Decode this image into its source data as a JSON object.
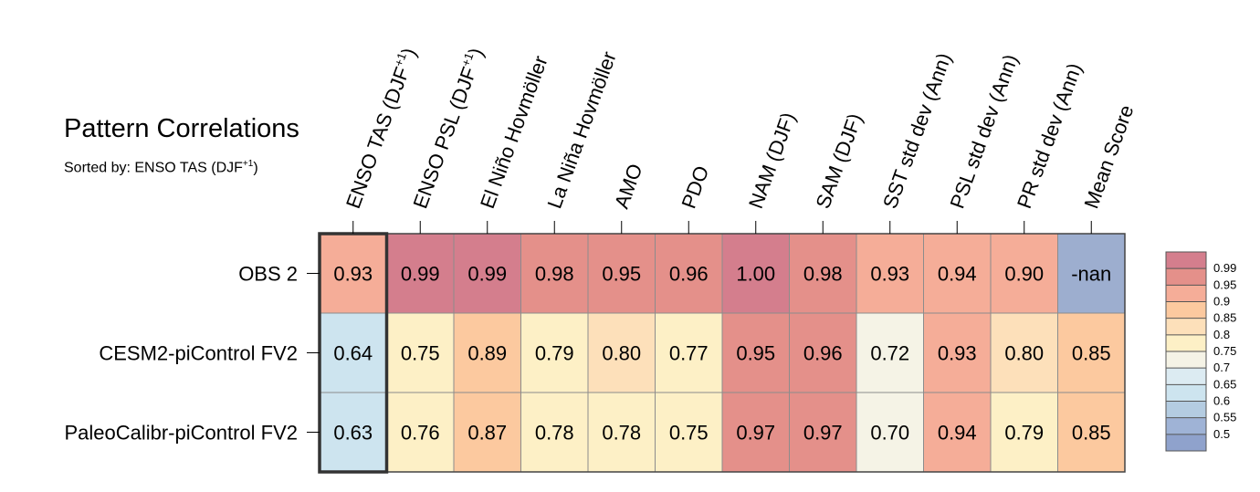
{
  "title": "Pattern Correlations",
  "subtitle": {
    "prefix": "Sorted by: ENSO TAS (DJF",
    "sup": "+1",
    "suffix": ")"
  },
  "chart_data": {
    "type": "heatmap",
    "columns": [
      {
        "label": "ENSO TAS (DJF",
        "sup": "+1",
        "close": ")"
      },
      {
        "label": "ENSO PSL (DJF",
        "sup": "+1",
        "close": ")"
      },
      {
        "label": "El Niño Hovmöller"
      },
      {
        "label": "La Niña Hovmöller"
      },
      {
        "label": "AMO"
      },
      {
        "label": "PDO"
      },
      {
        "label": "NAM (DJF)"
      },
      {
        "label": "SAM (DJF)"
      },
      {
        "label": "SST std dev (Ann)"
      },
      {
        "label": "PSL std dev (Ann)"
      },
      {
        "label": "PR std dev (Ann)"
      },
      {
        "label": "Mean Score"
      }
    ],
    "rows": [
      "OBS 2",
      "CESM2-piControl FV2",
      "PaleoCalibr-piControl FV2"
    ],
    "values": [
      [
        0.93,
        0.99,
        0.99,
        0.98,
        0.95,
        0.96,
        1.0,
        0.98,
        0.93,
        0.94,
        0.9,
        null
      ],
      [
        0.64,
        0.75,
        0.89,
        0.79,
        0.8,
        0.77,
        0.95,
        0.96,
        0.72,
        0.93,
        0.8,
        0.85
      ],
      [
        0.63,
        0.76,
        0.87,
        0.78,
        0.78,
        0.75,
        0.97,
        0.97,
        0.7,
        0.94,
        0.79,
        0.85
      ]
    ],
    "cell_text": [
      [
        "0.93",
        "0.99",
        "0.99",
        "0.98",
        "0.95",
        "0.96",
        "1.00",
        "0.98",
        "0.93",
        "0.94",
        "0.90",
        "-nan"
      ],
      [
        "0.64",
        "0.75",
        "0.89",
        "0.79",
        "0.80",
        "0.77",
        "0.95",
        "0.96",
        "0.72",
        "0.93",
        "0.80",
        "0.85"
      ],
      [
        "0.63",
        "0.76",
        "0.87",
        "0.78",
        "0.78",
        "0.75",
        "0.97",
        "0.97",
        "0.70",
        "0.94",
        "0.79",
        "0.85"
      ]
    ],
    "highlighted_column": 0,
    "nan_color": "#9daecf",
    "colorbar": {
      "labels": [
        "0.99",
        "0.95",
        "0.9",
        "0.85",
        "0.8",
        "0.75",
        "0.7",
        "0.65",
        "0.6",
        "0.55",
        "0.5"
      ],
      "bins": [
        {
          "lo": 0.99,
          "color": "#d47e8d"
        },
        {
          "lo": 0.95,
          "color": "#e4908a"
        },
        {
          "lo": 0.9,
          "color": "#f5ad98"
        },
        {
          "lo": 0.85,
          "color": "#fcc99f"
        },
        {
          "lo": 0.8,
          "color": "#fde0ba"
        },
        {
          "lo": 0.75,
          "color": "#fdf0c6"
        },
        {
          "lo": 0.7,
          "color": "#f5f3e6"
        },
        {
          "lo": 0.65,
          "color": "#dcebf2"
        },
        {
          "lo": 0.6,
          "color": "#cde4ef"
        },
        {
          "lo": 0.55,
          "color": "#b4cce1"
        },
        {
          "lo": 0.5,
          "color": "#9fb3d6"
        },
        {
          "lo": -1.0,
          "color": "#8fa2cc"
        }
      ]
    }
  }
}
